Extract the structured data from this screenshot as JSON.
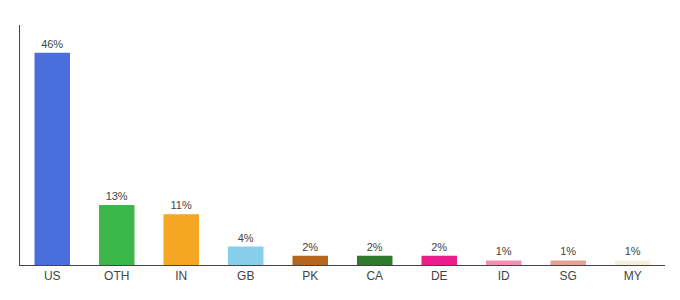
{
  "chart_data": {
    "type": "bar",
    "categories": [
      "US",
      "OTH",
      "IN",
      "GB",
      "PK",
      "CA",
      "DE",
      "ID",
      "SG",
      "MY"
    ],
    "values": [
      46,
      13,
      11,
      4,
      2,
      2,
      2,
      1,
      1,
      1
    ],
    "value_labels": [
      "46%",
      "13%",
      "11%",
      "4%",
      "2%",
      "2%",
      "2%",
      "1%",
      "1%",
      "1%"
    ],
    "colors": [
      "#4a6edb",
      "#3cb84a",
      "#f5a623",
      "#87ceeb",
      "#b5651d",
      "#2d7a2d",
      "#e91e8c",
      "#f48fb1",
      "#e8a090",
      "#f5f0dc"
    ],
    "ylim": [
      0,
      52
    ],
    "grid": false,
    "data_labels": true,
    "tick_labels": "x"
  }
}
